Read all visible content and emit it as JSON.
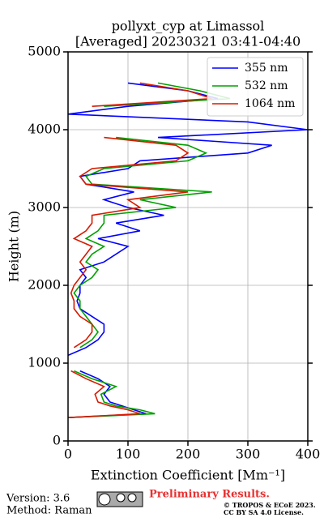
{
  "chart_data": {
    "type": "line",
    "title": "pollyxt_cyp at Limassol",
    "subtitle": "[Averaged] 20230321 03:41-04:40",
    "x_label": "Extinction Coefficient [Mm⁻¹]",
    "y_label": "Height (m)",
    "y": [
      300,
      350,
      400,
      450,
      500,
      600,
      700,
      800,
      900,
      1000,
      1100,
      1200,
      1300,
      1400,
      1500,
      1600,
      1700,
      1800,
      1900,
      2000,
      2100,
      2200,
      2300,
      2400,
      2500,
      2600,
      2700,
      2800,
      2900,
      3000,
      3100,
      3200,
      3300,
      3400,
      3500,
      3600,
      3700,
      3800,
      3900,
      4000,
      4100,
      4200,
      4300,
      4400,
      4500,
      4600
    ],
    "series": [
      {
        "name": "355 nm",
        "color": "#0000ff",
        "values": [
          0,
          130,
          110,
          90,
          70,
          60,
          70,
          50,
          20,
          null,
          0,
          30,
          50,
          60,
          60,
          40,
          20,
          15,
          20,
          20,
          30,
          20,
          60,
          80,
          100,
          50,
          120,
          80,
          160,
          100,
          60,
          110,
          30,
          20,
          100,
          120,
          300,
          340,
          150,
          400,
          300,
          0,
          100,
          250,
          200,
          100
        ]
      },
      {
        "name": "532 nm",
        "color": "#00a000",
        "values": [
          0,
          145,
          120,
          80,
          60,
          55,
          80,
          40,
          10,
          null,
          null,
          20,
          40,
          50,
          40,
          30,
          20,
          20,
          10,
          20,
          40,
          50,
          30,
          40,
          60,
          30,
          50,
          60,
          60,
          180,
          120,
          240,
          40,
          30,
          60,
          200,
          230,
          200,
          80,
          null,
          null,
          null,
          60,
          270,
          220,
          150
        ]
      },
      {
        "name": "1064 nm",
        "color": "#d61a00",
        "values": [
          0,
          120,
          100,
          70,
          50,
          45,
          60,
          30,
          5,
          null,
          null,
          10,
          30,
          40,
          40,
          20,
          10,
          10,
          5,
          10,
          20,
          30,
          20,
          30,
          40,
          10,
          30,
          40,
          40,
          120,
          100,
          200,
          30,
          20,
          40,
          180,
          200,
          180,
          60,
          null,
          null,
          null,
          40,
          240,
          200,
          120
        ]
      }
    ],
    "xlim": [
      0,
      400
    ],
    "xticks": [
      0,
      100,
      200,
      300,
      400
    ],
    "ylim": [
      0,
      5000
    ],
    "yticks": [
      0,
      1000,
      2000,
      3000,
      4000,
      5000
    ],
    "grid": true,
    "legend": "upper right"
  },
  "footer": {
    "version": "Version: 3.6",
    "method": "Method: Raman",
    "status": "Preliminary Results.",
    "copyright": "© TROPOS & ECoE 2023.",
    "license": "CC BY SA 4.0 License."
  }
}
